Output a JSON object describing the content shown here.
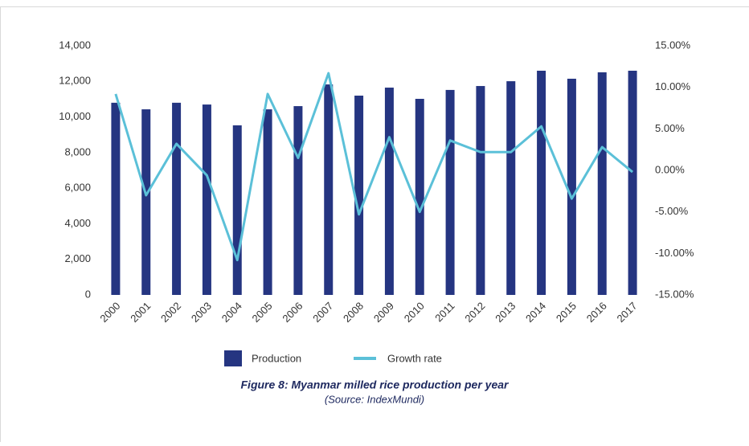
{
  "chart_data": {
    "type": "bar",
    "title": "Figure 8: Myanmar milled rice production per year",
    "subtitle": "(Source: IndexMundi)",
    "categories": [
      "2000",
      "2001",
      "2002",
      "2003",
      "2004",
      "2005",
      "2006",
      "2007",
      "2008",
      "2009",
      "2010",
      "2011",
      "2012",
      "2013",
      "2014",
      "2015",
      "2016",
      "2017"
    ],
    "series": [
      {
        "name": "Production",
        "type": "bar",
        "color": "#253581",
        "values": [
          10800,
          10430,
          10800,
          10700,
          9530,
          10430,
          10610,
          11830,
          11200,
          11650,
          11020,
          11520,
          11740,
          12010,
          12600,
          12150,
          12510,
          12600
        ]
      },
      {
        "name": "Growth rate",
        "type": "line",
        "axis": "y2",
        "color": "#5bc0d8",
        "values": [
          9.2,
          -3.0,
          3.2,
          -0.6,
          -10.8,
          9.2,
          1.5,
          11.7,
          -5.3,
          4.0,
          -5.0,
          3.6,
          2.2,
          2.2,
          5.3,
          -3.4,
          2.8,
          -0.2
        ]
      }
    ],
    "ylim": [
      0,
      14000
    ],
    "yticks": [
      0,
      {
        "value": 2000,
        "label": "2,000"
      },
      {
        "value": 4000,
        "label": "4,000"
      },
      {
        "value": 6000,
        "label": "6,000"
      },
      {
        "value": 8000,
        "label": "8,000"
      },
      {
        "value": 10000,
        "label": "10,000"
      },
      {
        "value": 12000,
        "label": "12,000"
      },
      {
        "value": 14000,
        "label": "14,000"
      }
    ],
    "y2lim": [
      -15,
      15
    ],
    "y2ticks": [
      {
        "value": -15,
        "label": "-15.00%"
      },
      {
        "value": -10,
        "label": "-10.00%"
      },
      {
        "value": -5,
        "label": "-5.00%"
      },
      {
        "value": 0,
        "label": "0.00%"
      },
      {
        "value": 5,
        "label": "5.00%"
      },
      {
        "value": 10,
        "label": "10.00%"
      },
      {
        "value": 15,
        "label": "15.00%"
      }
    ],
    "legend": "bottom"
  }
}
